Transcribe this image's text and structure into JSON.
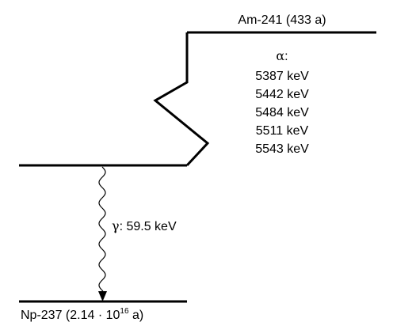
{
  "parent": {
    "label": "Am-241 (433 a)"
  },
  "alpha": {
    "symbol": "α",
    "symbol_suffix": ":",
    "energies": [
      "5387 keV",
      "5442 keV",
      "5484 keV",
      "5511 keV",
      "5543 keV"
    ]
  },
  "gamma": {
    "symbol": "γ",
    "label": ": 59.5 keV"
  },
  "daughter": {
    "prefix": "Np-237 (2.14 · 10",
    "exponent": "16",
    "suffix": " a)"
  }
}
